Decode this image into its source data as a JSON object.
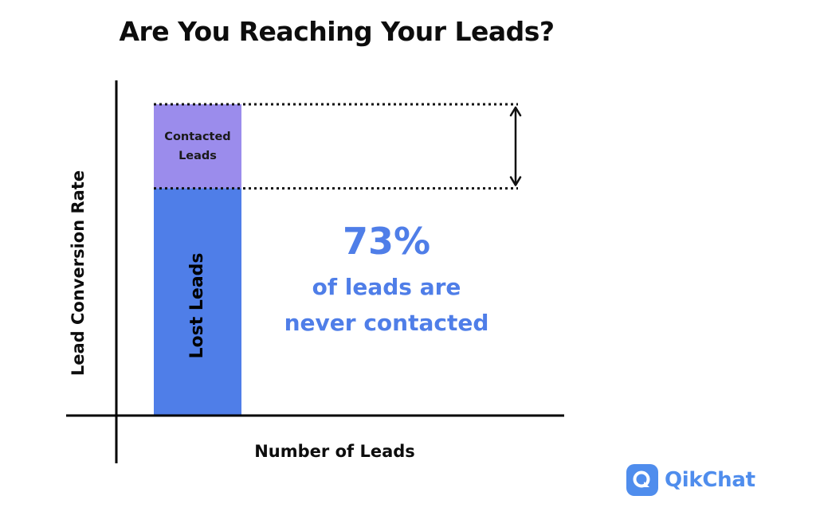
{
  "title": "Are You Reaching Your Leads?",
  "colors": {
    "contacted": "#9b8cec",
    "lost": "#4f7ee8",
    "accent_text": "#4f7ee8",
    "axis": "#000000",
    "logo": "#4f8ded"
  },
  "chart_data": {
    "type": "bar",
    "title": "Are You Reaching Your Leads?",
    "xlabel": "Number of Leads",
    "ylabel": "Lead Conversion Rate",
    "stacked": true,
    "grid": false,
    "legend": "none",
    "ylim": [
      0,
      100
    ],
    "categories": [
      ""
    ],
    "series": [
      {
        "name": "Lost Leads",
        "values": [
          73
        ]
      },
      {
        "name": "Contacted Leads",
        "values": [
          27
        ]
      }
    ],
    "annotations": [
      {
        "text": "73%",
        "subtext": "of leads are never contacted"
      }
    ]
  },
  "segment_labels": {
    "lost": "Lost Leads",
    "contacted_line1": "Contacted",
    "contacted_line2": "Leads"
  },
  "stat": {
    "value": "73%",
    "caption_line1": "of leads are",
    "caption_line2": "never contacted"
  },
  "logo": {
    "text": "QikChat",
    "icon": "qikchat-logo-icon"
  }
}
